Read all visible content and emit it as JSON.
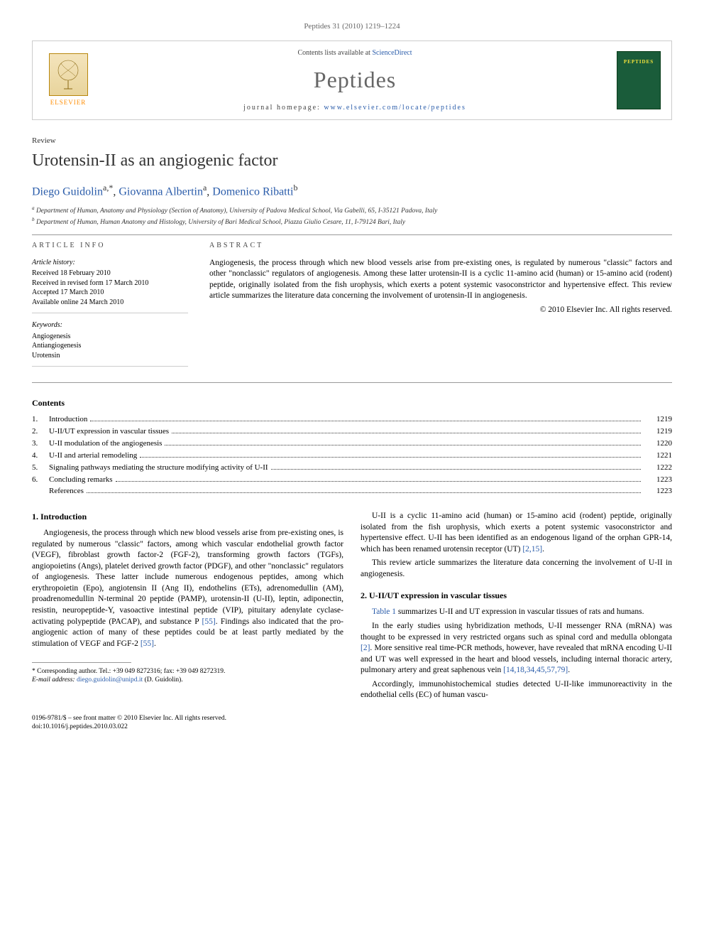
{
  "header": {
    "citation": "Peptides 31 (2010) 1219–1224"
  },
  "journalBox": {
    "elsevier": "ELSEVIER",
    "contentsPrefix": "Contents lists available at ",
    "contentsLink": "ScienceDirect",
    "journalName": "Peptides",
    "homepagePrefix": "journal homepage: ",
    "homepageUrl": "www.elsevier.com/locate/peptides",
    "coverLabel": "PEPTIDES"
  },
  "article": {
    "type": "Review",
    "title": "Urotensin-II as an angiogenic factor"
  },
  "authors": {
    "a1_name": "Diego Guidolin",
    "a1_aff": "a,",
    "a1_corr": "*",
    "a2_name": "Giovanna Albertin",
    "a2_aff": "a",
    "a3_name": "Domenico Ribatti",
    "a3_aff": "b"
  },
  "affiliations": {
    "a": "Department of Human, Anatomy and Physiology (Section of Anatomy), University of Padova Medical School, Via Gabelli, 65, I-35121 Padova, Italy",
    "b": "Department of Human, Human Anatomy and Histology, University of Bari Medical School, Piazza Giulio Cesare, 11, I-79124 Bari, Italy"
  },
  "info": {
    "heading": "ARTICLE INFO",
    "historyLabel": "Article history:",
    "received": "Received 18 February 2010",
    "revised": "Received in revised form 17 March 2010",
    "accepted": "Accepted 17 March 2010",
    "online": "Available online 24 March 2010",
    "keywordsLabel": "Keywords:",
    "kw1": "Angiogenesis",
    "kw2": "Antiangiogenesis",
    "kw3": "Urotensin"
  },
  "abstract": {
    "heading": "ABSTRACT",
    "text": "Angiogenesis, the process through which new blood vessels arise from pre-existing ones, is regulated by numerous \"classic\" factors and other \"nonclassic\" regulators of angiogenesis. Among these latter urotensin-II is a cyclic 11-amino acid (human) or 15-amino acid (rodent) peptide, originally isolated from the fish urophysis, which exerts a potent systemic vasoconstrictor and hypertensive effect. This review article summarizes the literature data concerning the involvement of urotensin-II in angiogenesis.",
    "copyright": "© 2010 Elsevier Inc. All rights reserved."
  },
  "contents": {
    "heading": "Contents",
    "items": [
      {
        "num": "1.",
        "label": "Introduction",
        "page": "1219"
      },
      {
        "num": "2.",
        "label": "U-II/UT expression in vascular tissues",
        "page": "1219"
      },
      {
        "num": "3.",
        "label": "U-II modulation of the angiogenesis",
        "page": "1220"
      },
      {
        "num": "4.",
        "label": "U-II and arterial remodeling",
        "page": "1221"
      },
      {
        "num": "5.",
        "label": "Signaling pathways mediating the structure modifying activity of U-II",
        "page": "1222"
      },
      {
        "num": "6.",
        "label": "Concluding remarks",
        "page": "1223"
      },
      {
        "num": "",
        "label": "References",
        "page": "1223"
      }
    ]
  },
  "body": {
    "s1_heading": "1. Introduction",
    "s1_p1a": "Angiogenesis, the process through which new blood vessels arise from pre-existing ones, is regulated by numerous \"classic\" factors, among which vascular endothelial growth factor (VEGF), fibroblast growth factor-2 (FGF-2), transforming growth factors (TGFs), angiopoietins (Angs), platelet derived growth factor (PDGF), and other \"nonclassic\" regulators of angiogenesis. These latter include numerous endogenous peptides, among which erythropoietin (Epo), angiotensin II (Ang II), endothelins (ETs), adrenomedullin (AM), proadrenomedullin N-terminal 20 peptide (PAMP), urotensin-II (U-II), leptin, adiponectin, resistin, neuropeptide-Y, vasoactive intestinal peptide (VIP), pituitary adenylate cyclase-activating polypeptide (PACAP), and substance P ",
    "s1_ref1": "[55]",
    "s1_p1b": ". Findings also indicated that the pro-angiogenic action of many of these peptides could be at least partly mediated by the stimulation of VEGF and FGF-2 ",
    "s1_ref2": "[55]",
    "s1_p1c": ".",
    "s1_p2a": "U-II is a cyclic 11-amino acid (human) or 15-amino acid (rodent) peptide, originally isolated from the fish urophysis, which exerts a potent systemic vasoconstrictor and hypertensive effect. U-II has been identified as an endogenous ligand of the orphan GPR-14, which has been renamed urotensin receptor (UT) ",
    "s1_ref3": "[2,15]",
    "s1_p2b": ".",
    "s1_p3": "This review article summarizes the literature data concerning the involvement of U-II in angiogenesis.",
    "s2_heading": "2. U-II/UT expression in vascular tissues",
    "s2_p1a": "",
    "s2_ref1": "Table 1",
    "s2_p1b": " summarizes U-II and UT expression in vascular tissues of rats and humans.",
    "s2_p2a": "In the early studies using hybridization methods, U-II messenger RNA (mRNA) was thought to be expressed in very restricted organs such as spinal cord and medulla oblongata ",
    "s2_ref2": "[2]",
    "s2_p2b": ". More sensitive real time-PCR methods, however, have revealed that mRNA encoding U-II and UT was well expressed in the heart and blood vessels, including internal thoracic artery, pulmonary artery and great saphenous vein ",
    "s2_ref3": "[14,18,34,45,57,79]",
    "s2_p2c": ".",
    "s2_p3": "Accordingly, immunohistochemical studies detected U-II-like immunoreactivity in the endothelial cells (EC) of human vascu-"
  },
  "footnote": {
    "corrLabel": "* Corresponding author. Tel.: +39 049 8272316; fax: +39 049 8272319.",
    "emailLabel": "E-mail address: ",
    "email": "diego.guidolin@unipd.it",
    "emailSuffix": " (D. Guidolin)."
  },
  "footer": {
    "line1": "0196-9781/$ – see front matter © 2010 Elsevier Inc. All rights reserved.",
    "line2": "doi:10.1016/j.peptides.2010.03.022"
  }
}
